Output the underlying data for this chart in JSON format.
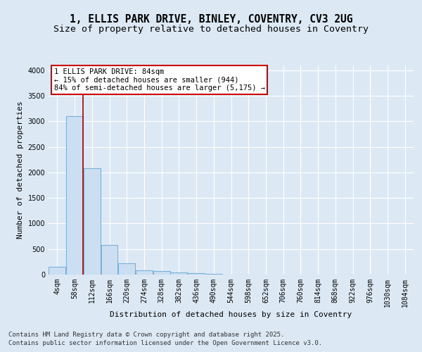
{
  "title_line1": "1, ELLIS PARK DRIVE, BINLEY, COVENTRY, CV3 2UG",
  "title_line2": "Size of property relative to detached houses in Coventry",
  "xlabel": "Distribution of detached houses by size in Coventry",
  "ylabel": "Number of detached properties",
  "bin_labels": [
    "4sqm",
    "58sqm",
    "112sqm",
    "166sqm",
    "220sqm",
    "274sqm",
    "328sqm",
    "382sqm",
    "436sqm",
    "490sqm",
    "544sqm",
    "598sqm",
    "652sqm",
    "706sqm",
    "760sqm",
    "814sqm",
    "868sqm",
    "922sqm",
    "976sqm",
    "1030sqm",
    "1084sqm"
  ],
  "bar_values": [
    150,
    3100,
    2075,
    575,
    220,
    85,
    65,
    40,
    30,
    20,
    5,
    3,
    2,
    1,
    1,
    0,
    0,
    0,
    0,
    0,
    0
  ],
  "bar_color": "#ccdff2",
  "bar_edge_color": "#7ab0d8",
  "vline_x": 1.5,
  "vline_color": "#aa0000",
  "annotation_text": "1 ELLIS PARK DRIVE: 84sqm\n← 15% of detached houses are smaller (944)\n84% of semi-detached houses are larger (5,175) →",
  "annotation_box_color": "#cc0000",
  "ylim": [
    0,
    4100
  ],
  "yticks": [
    0,
    500,
    1000,
    1500,
    2000,
    2500,
    3000,
    3500,
    4000
  ],
  "background_color": "#dce9f5",
  "plot_bg_color": "#dce9f5",
  "grid_color": "#ffffff",
  "footer_line1": "Contains HM Land Registry data © Crown copyright and database right 2025.",
  "footer_line2": "Contains public sector information licensed under the Open Government Licence v3.0.",
  "title_fontsize": 10.5,
  "subtitle_fontsize": 9.5,
  "axis_label_fontsize": 8,
  "tick_fontsize": 7,
  "annotation_fontsize": 7.5,
  "footer_fontsize": 6.5
}
